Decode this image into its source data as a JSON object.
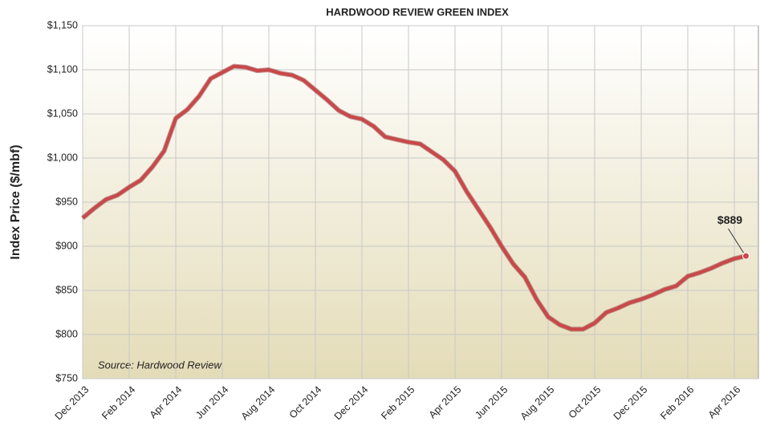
{
  "chart_data": {
    "type": "line",
    "title": "HARDWOOD REVIEW GREEN INDEX",
    "y_label": "Index Price ($/mbf)",
    "source": "Source: Hardwood Review",
    "color": "#c9484a",
    "grid": true,
    "categories": [
      "Dec 2013",
      null,
      null,
      null,
      "Feb 2014",
      null,
      null,
      null,
      "Apr 2014",
      null,
      null,
      null,
      "Jun 2014",
      null,
      null,
      null,
      "Aug 2014",
      null,
      null,
      null,
      "Oct 2014",
      null,
      null,
      null,
      "Dec 2014",
      null,
      null,
      null,
      "Feb 2015",
      null,
      null,
      null,
      "Apr 2015",
      null,
      null,
      null,
      "Jun 2015",
      null,
      null,
      null,
      "Aug 2015",
      null,
      null,
      null,
      "Oct 2015",
      null,
      null,
      null,
      "Dec 2015",
      null,
      null,
      null,
      "Feb 2016",
      null,
      null,
      null,
      "Apr 2016",
      null
    ],
    "values": [
      932,
      943,
      953,
      958,
      967,
      975,
      990,
      1008,
      1045,
      1055,
      1070,
      1090,
      1097,
      1104,
      1103,
      1099,
      1100,
      1096,
      1094,
      1088,
      1077,
      1066,
      1054,
      1047,
      1044,
      1036,
      1024,
      1021,
      1018,
      1016,
      1007,
      998,
      985,
      962,
      942,
      922,
      900,
      880,
      865,
      840,
      820,
      811,
      806,
      806,
      813,
      825,
      830,
      836,
      840,
      845,
      851,
      855,
      866,
      870,
      875,
      881,
      886,
      889
    ],
    "value_labels": [
      null,
      null,
      null,
      null,
      null,
      null,
      null,
      null,
      null,
      null,
      null,
      null,
      null,
      null,
      null,
      null,
      null,
      null,
      null,
      null,
      null,
      null,
      null,
      null,
      null,
      null,
      null,
      null,
      null,
      null,
      null,
      null,
      null,
      null,
      null,
      null,
      null,
      null,
      null,
      null,
      null,
      null,
      null,
      null,
      null,
      null,
      null,
      null,
      null,
      null,
      null,
      null,
      null,
      null,
      null,
      null,
      null,
      "$889"
    ],
    "ylim": [
      750,
      1150
    ],
    "yticks": [
      {
        "value": 750,
        "label": "$750"
      },
      {
        "value": 800,
        "label": "$800"
      },
      {
        "value": 850,
        "label": "$850"
      },
      {
        "value": 900,
        "label": "$900"
      },
      {
        "value": 950,
        "label": "$950"
      },
      {
        "value": 1000,
        "label": "$1,000"
      },
      {
        "value": 1050,
        "label": "$1,050"
      },
      {
        "value": 1100,
        "label": "$1,100"
      },
      {
        "value": 1150,
        "label": "$1,150"
      }
    ]
  }
}
